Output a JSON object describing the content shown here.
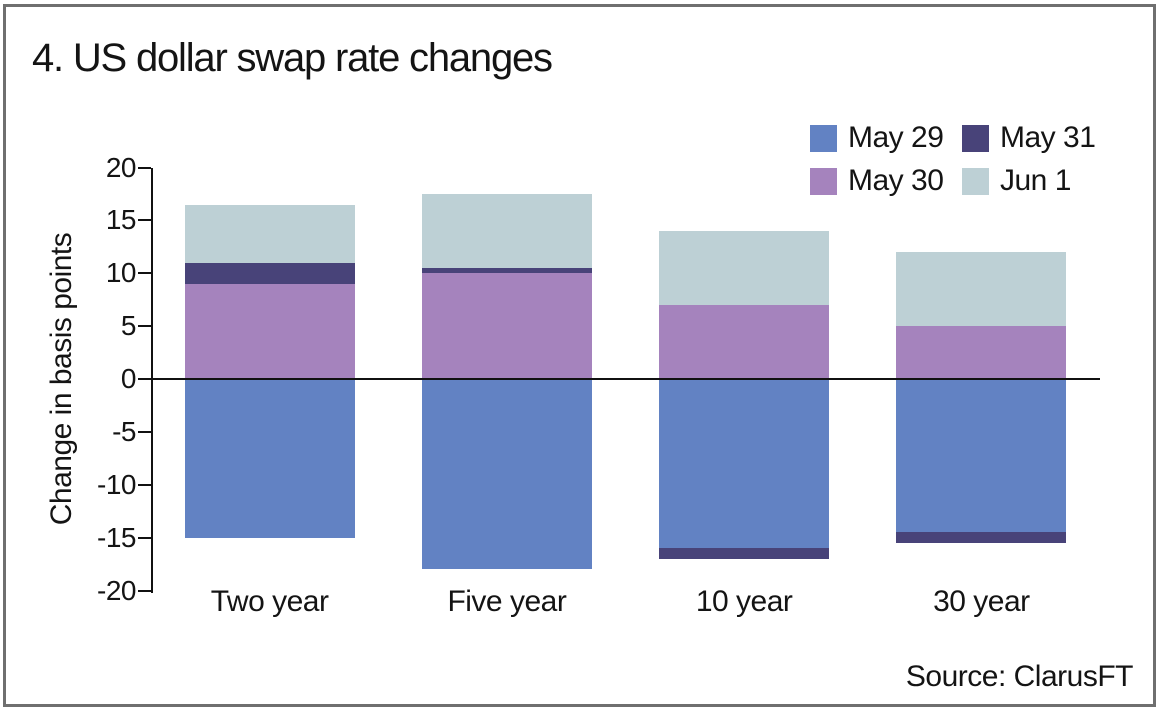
{
  "title": "4. US dollar swap rate changes",
  "frame_color": "#6f6f6f",
  "axis_color": "#111111",
  "chart_data": {
    "type": "bar",
    "stacked": true,
    "title": "4. US dollar swap rate changes",
    "ylabel": "Change in basis points",
    "xlabel": "",
    "ylim": [
      -20,
      20
    ],
    "yticks": [
      20,
      15,
      10,
      5,
      0,
      -5,
      -10,
      -15,
      -20
    ],
    "grid": false,
    "legend_position": "top-right",
    "categories": [
      "Two year",
      "Five year",
      "10 year",
      "30 year"
    ],
    "series": [
      {
        "name": "May 29",
        "color": "#6282c3",
        "values": [
          -15,
          -18,
          -16,
          -14.5
        ]
      },
      {
        "name": "May 30",
        "color": "#a583bd",
        "values": [
          9,
          10,
          7,
          5
        ]
      },
      {
        "name": "May 31",
        "color": "#484379",
        "values": [
          2,
          0.5,
          -1,
          -1
        ]
      },
      {
        "name": "Jun 1",
        "color": "#bdd0d5",
        "values": [
          5.5,
          7,
          7,
          7
        ]
      }
    ],
    "source": "Source: ClarusFT"
  }
}
